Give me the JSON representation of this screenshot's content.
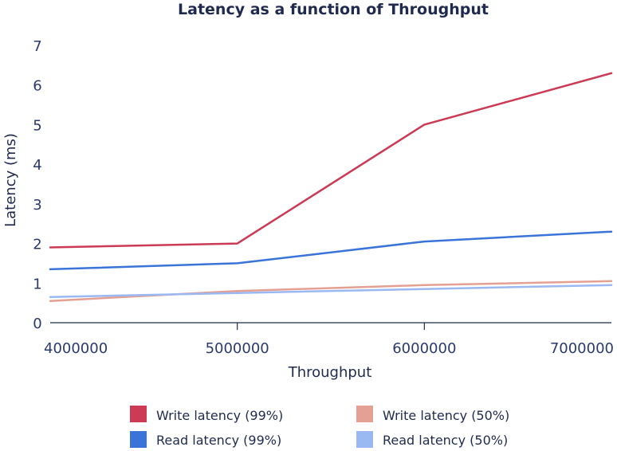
{
  "chart_data": {
    "type": "line",
    "title": "Latency as a function of Throughput",
    "xlabel": "Throughput",
    "ylabel": "Latency (ms)",
    "x": [
      4000000,
      5000000,
      6000000,
      7000000
    ],
    "x_tick_labels": [
      "4000000",
      "5000000",
      "6000000",
      "7000000"
    ],
    "xlim": [
      4000000,
      7000000
    ],
    "ylim": [
      0,
      7
    ],
    "y_ticks": [
      0,
      1,
      2,
      3,
      4,
      5,
      6,
      7
    ],
    "y_tick_labels": [
      "0",
      "1",
      "2",
      "3",
      "4",
      "5",
      "6",
      "7"
    ],
    "grid": false,
    "legend_position": "bottom",
    "series": [
      {
        "name": "Write latency (99%)",
        "color": "#cc3a55",
        "values": [
          1.9,
          2.0,
          5.0,
          6.3
        ]
      },
      {
        "name": "Read latency (99%)",
        "color": "#3a74d9",
        "values": [
          1.35,
          1.5,
          2.05,
          2.3
        ]
      },
      {
        "name": "Write latency (50%)",
        "color": "#e3a093",
        "values": [
          0.55,
          0.8,
          0.95,
          1.05
        ]
      },
      {
        "name": "Read latency (50%)",
        "color": "#9ab8f2",
        "values": [
          0.65,
          0.75,
          0.85,
          0.95
        ]
      }
    ]
  }
}
